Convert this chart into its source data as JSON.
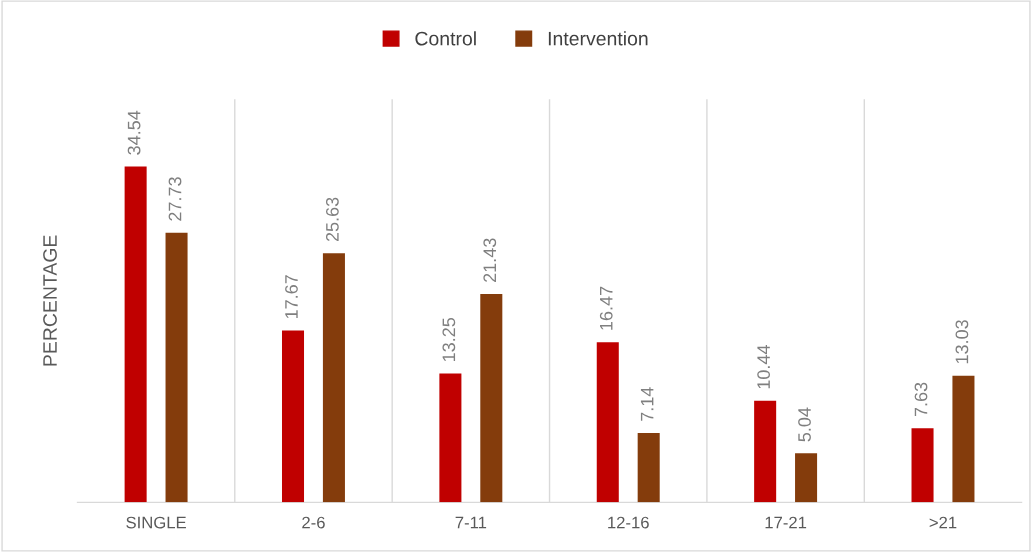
{
  "chart_data": {
    "type": "bar",
    "ylabel": "PERCENTAGE",
    "categories": [
      "SINGLE",
      "2-6",
      "7-11",
      "12-16",
      "17-21",
      ">21"
    ],
    "series": [
      {
        "name": "Control",
        "color": "#c00000",
        "values": [
          34.54,
          17.67,
          13.25,
          16.47,
          10.44,
          7.63
        ]
      },
      {
        "name": "Intervention",
        "color": "#843c0c",
        "values": [
          27.73,
          25.63,
          21.43,
          7.14,
          5.04,
          13.03
        ]
      }
    ],
    "data_labels": true,
    "grid": "x",
    "legend": "top"
  }
}
